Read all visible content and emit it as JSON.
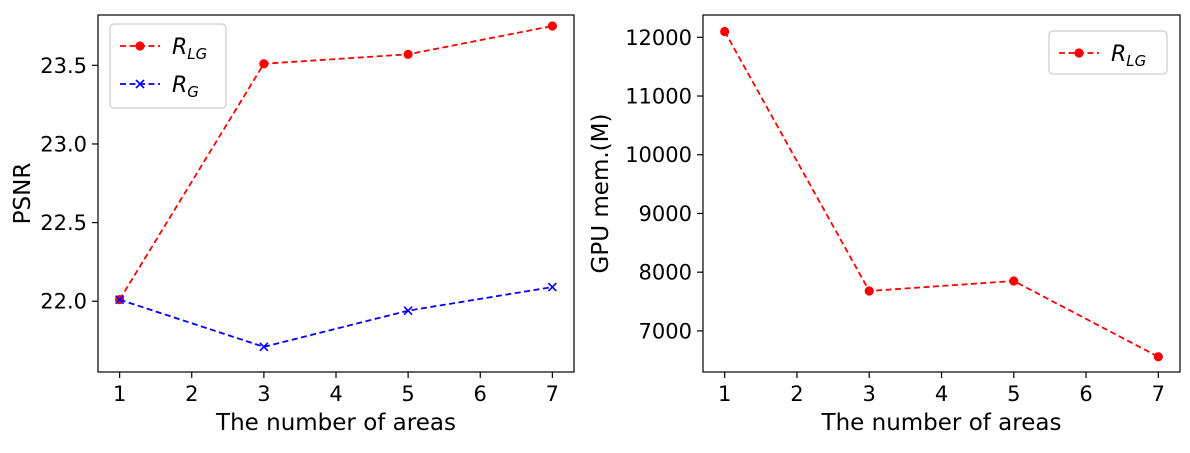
{
  "chart_data": [
    {
      "type": "line",
      "xlabel": "The number of areas",
      "ylabel": "PSNR",
      "xlim": [
        0.7,
        7.3
      ],
      "ylim": [
        21.55,
        23.82
      ],
      "xticks": [
        1,
        2,
        3,
        4,
        5,
        6,
        7
      ],
      "yticks": [
        22.0,
        22.5,
        23.0,
        23.5
      ],
      "ytick_labels": [
        "22.0",
        "22.5",
        "23.0",
        "23.5"
      ],
      "legend_position": "top-left",
      "series": [
        {
          "name": "R",
          "sub": "LG",
          "x": [
            1,
            3,
            5,
            7
          ],
          "y": [
            22.01,
            23.51,
            23.57,
            23.75
          ],
          "color": "#ff0000",
          "marker": "circle",
          "linestyle": "dashed"
        },
        {
          "name": "R",
          "sub": "G",
          "x": [
            1,
            3,
            5,
            7
          ],
          "y": [
            22.01,
            21.71,
            21.94,
            22.09
          ],
          "color": "#0000ff",
          "marker": "x",
          "linestyle": "dashed"
        }
      ]
    },
    {
      "type": "line",
      "xlabel": "The number of areas",
      "ylabel": "GPU mem.(M)",
      "xlim": [
        0.7,
        7.3
      ],
      "ylim": [
        6300,
        12380
      ],
      "xticks": [
        1,
        2,
        3,
        4,
        5,
        6,
        7
      ],
      "yticks": [
        7000,
        8000,
        9000,
        10000,
        11000,
        12000
      ],
      "ytick_labels": [
        "7000",
        "8000",
        "9000",
        "10000",
        "11000",
        "12000"
      ],
      "legend_position": "top-right",
      "series": [
        {
          "name": "R",
          "sub": "LG",
          "x": [
            1,
            3,
            5,
            7
          ],
          "y": [
            12100,
            7680,
            7850,
            6560
          ],
          "color": "#ff0000",
          "marker": "circle",
          "linestyle": "dashed"
        }
      ]
    }
  ]
}
